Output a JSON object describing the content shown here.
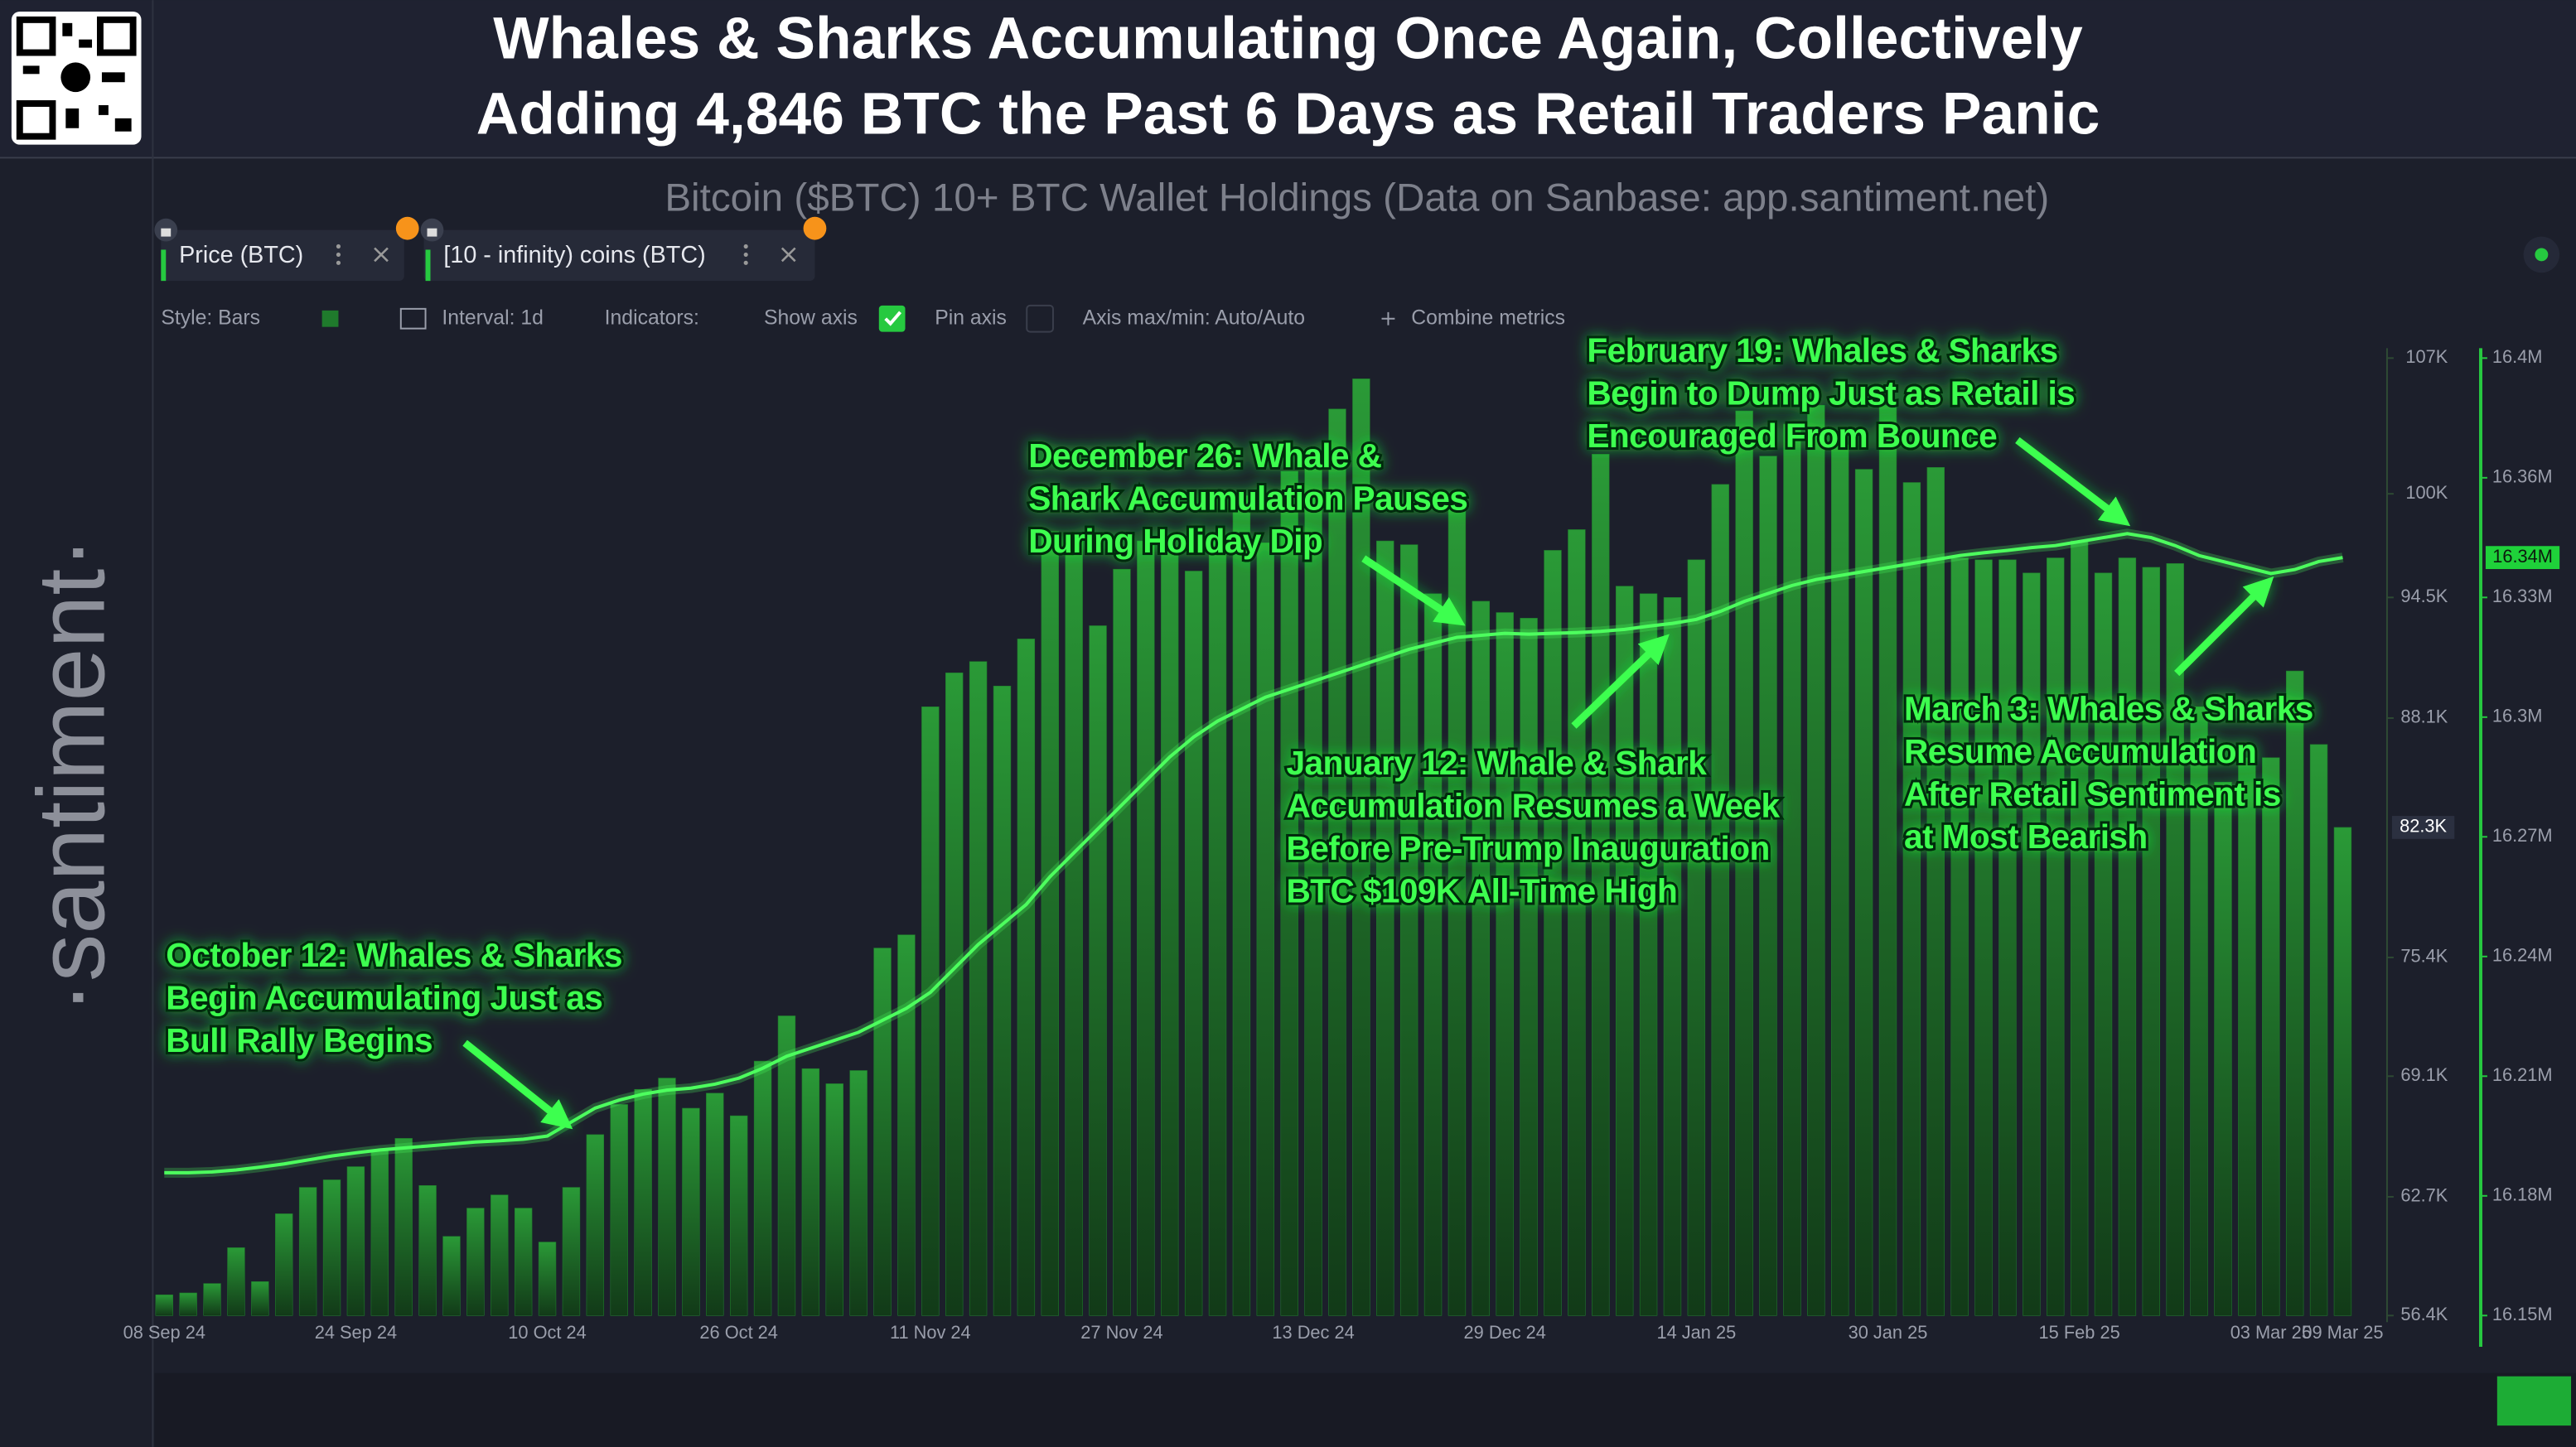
{
  "chart_data": {
    "type": "combo",
    "title_lines": [
      "Whales & Sharks Accumulating Once Again, Collectively",
      "Adding 4,846 BTC the Past 6 Days as Retail Traders Panic"
    ],
    "subtitle": "Bitcoin ($BTC) 10+ BTC Wallet Holdings (Data on Sanbase: app.santiment.net)",
    "toolbar": {
      "style": "Style: Bars",
      "interval": "Interval: 1d",
      "indicators": "Indicators:",
      "show_axis": "Show axis",
      "pin_axis": "Pin axis",
      "axis_range": "Axis max/min: Auto/Auto",
      "combine": "Combine metrics"
    },
    "watermark": "·santiment·",
    "grid": false,
    "categories": [
      "08 Sep 24",
      null,
      null,
      null,
      null,
      null,
      null,
      null,
      "24 Sep 24",
      null,
      null,
      null,
      null,
      null,
      null,
      null,
      "10 Oct 24",
      null,
      null,
      null,
      null,
      null,
      null,
      null,
      "26 Oct 24",
      null,
      null,
      null,
      null,
      null,
      null,
      null,
      "11 Nov 24",
      null,
      null,
      null,
      null,
      null,
      null,
      null,
      "27 Nov 24",
      null,
      null,
      null,
      null,
      null,
      null,
      null,
      "13 Dec 24",
      null,
      null,
      null,
      null,
      null,
      null,
      null,
      "29 Dec 24",
      null,
      null,
      null,
      null,
      null,
      null,
      null,
      "14 Jan 25",
      null,
      null,
      null,
      null,
      null,
      null,
      null,
      "30 Jan 25",
      null,
      null,
      null,
      null,
      null,
      null,
      null,
      "15 Feb 25",
      null,
      null,
      null,
      null,
      null,
      null,
      null,
      "03 Mar 25",
      null,
      null,
      "09 Mar 25"
    ],
    "series": [
      {
        "name": "Price (BTC)",
        "type": "bar",
        "axis": "y",
        "color": "#1f7a2c",
        "last_label": "82.3K",
        "values": [
          57500,
          57600,
          58100,
          60000,
          58200,
          61800,
          63200,
          63600,
          64300,
          65200,
          65800,
          63300,
          60600,
          62100,
          62800,
          62100,
          60300,
          63200,
          66000,
          67600,
          68400,
          69000,
          67400,
          68200,
          67000,
          69900,
          72300,
          69500,
          68700,
          69400,
          75900,
          76600,
          88700,
          90500,
          91100,
          89800,
          92300,
          98000,
          97800,
          93000,
          96000,
          97500,
          97200,
          95900,
          97800,
          99900,
          97400,
          101200,
          101400,
          104500,
          106100,
          97500,
          97300,
          94700,
          99400,
          94300,
          93700,
          93400,
          97000,
          98100,
          102100,
          95100,
          94700,
          94500,
          96500,
          100500,
          104400,
          102000,
          103700,
          104700,
          102600,
          101300,
          104700,
          100600,
          101400,
          96600,
          96500,
          96500,
          95800,
          96600,
          97500,
          95800,
          96600,
          96100,
          96300,
          88700,
          84700,
          86000,
          86000,
          90600,
          86700,
          82300
        ]
      },
      {
        "name": "[10 - infinity) coins (BTC)",
        "type": "line",
        "axis": "y2",
        "color": "#4dff5e",
        "last_label": "16.34M",
        "values": [
          16185800,
          16185800,
          16186000,
          16186500,
          16187200,
          16188000,
          16189000,
          16190000,
          16190800,
          16191500,
          16192000,
          16192500,
          16193000,
          16193500,
          16193800,
          16194200,
          16195000,
          16198500,
          16202000,
          16204000,
          16205500,
          16206500,
          16207000,
          16208000,
          16209500,
          16212000,
          16215000,
          16217000,
          16219000,
          16221000,
          16224000,
          16227000,
          16231000,
          16237000,
          16243000,
          16248000,
          16253000,
          16260000,
          16266000,
          16272000,
          16278000,
          16284000,
          16290000,
          16295000,
          16299000,
          16302000,
          16305000,
          16307000,
          16309000,
          16311000,
          16313000,
          16315000,
          16317000,
          16318500,
          16320000,
          16320500,
          16321000,
          16320800,
          16321000,
          16321200,
          16321500,
          16322000,
          16322800,
          16323500,
          16324500,
          16326500,
          16329000,
          16331000,
          16333000,
          16334500,
          16335500,
          16336500,
          16337500,
          16338500,
          16339500,
          16340500,
          16341200,
          16341800,
          16342500,
          16343000,
          16344000,
          16345000,
          16346000,
          16345000,
          16343000,
          16340500,
          16339000,
          16337500,
          16336000,
          16337000,
          16339000,
          16340000
        ]
      }
    ],
    "ylim": [
      56400,
      107200
    ],
    "yticks": [
      {
        "value": 56400,
        "label": "56.4K"
      },
      {
        "value": 62700,
        "label": "62.7K"
      },
      {
        "value": 69100,
        "label": "69.1K"
      },
      {
        "value": 75400,
        "label": "75.4K"
      },
      {
        "value": 88100,
        "label": "88.1K"
      },
      {
        "value": 94500,
        "label": "94.5K"
      },
      {
        "value": 100000,
        "label": "100K"
      },
      {
        "value": 107200,
        "label": "107K"
      }
    ],
    "y2lim": [
      16150000,
      16390000
    ],
    "y2ticks": [
      {
        "value": 16150000,
        "label": "16.15M"
      },
      {
        "value": 16180000,
        "label": "16.18M"
      },
      {
        "value": 16210000,
        "label": "16.21M"
      },
      {
        "value": 16240000,
        "label": "16.24M"
      },
      {
        "value": 16270000,
        "label": "16.27M"
      },
      {
        "value": 16300000,
        "label": "16.3M"
      },
      {
        "value": 16330000,
        "label": "16.33M"
      },
      {
        "value": 16360000,
        "label": "16.36M"
      },
      {
        "value": 16390000,
        "label": "16.4M"
      }
    ],
    "annotations": [
      {
        "lines": [
          "October 12: Whales & Sharks",
          "Begin Accumulating Just as",
          "Bull Rally Begins"
        ]
      },
      {
        "lines": [
          "December 26: Whale &",
          "Shark Accumulation Pauses",
          "During Holiday Dip"
        ]
      },
      {
        "lines": [
          "February 19: Whales & Sharks",
          "Begin to Dump Just as Retail is",
          "Encouraged From Bounce"
        ]
      },
      {
        "lines": [
          "January 12: Whale & Shark",
          "Accumulation Resumes a Week",
          "Before Pre-Trump Inauguration",
          "BTC $109K All-Time High"
        ]
      },
      {
        "lines": [
          "March 3: Whales & Sharks",
          "Resume Accumulation",
          "After Retail Sentiment is",
          "at Most Bearish"
        ]
      }
    ]
  }
}
